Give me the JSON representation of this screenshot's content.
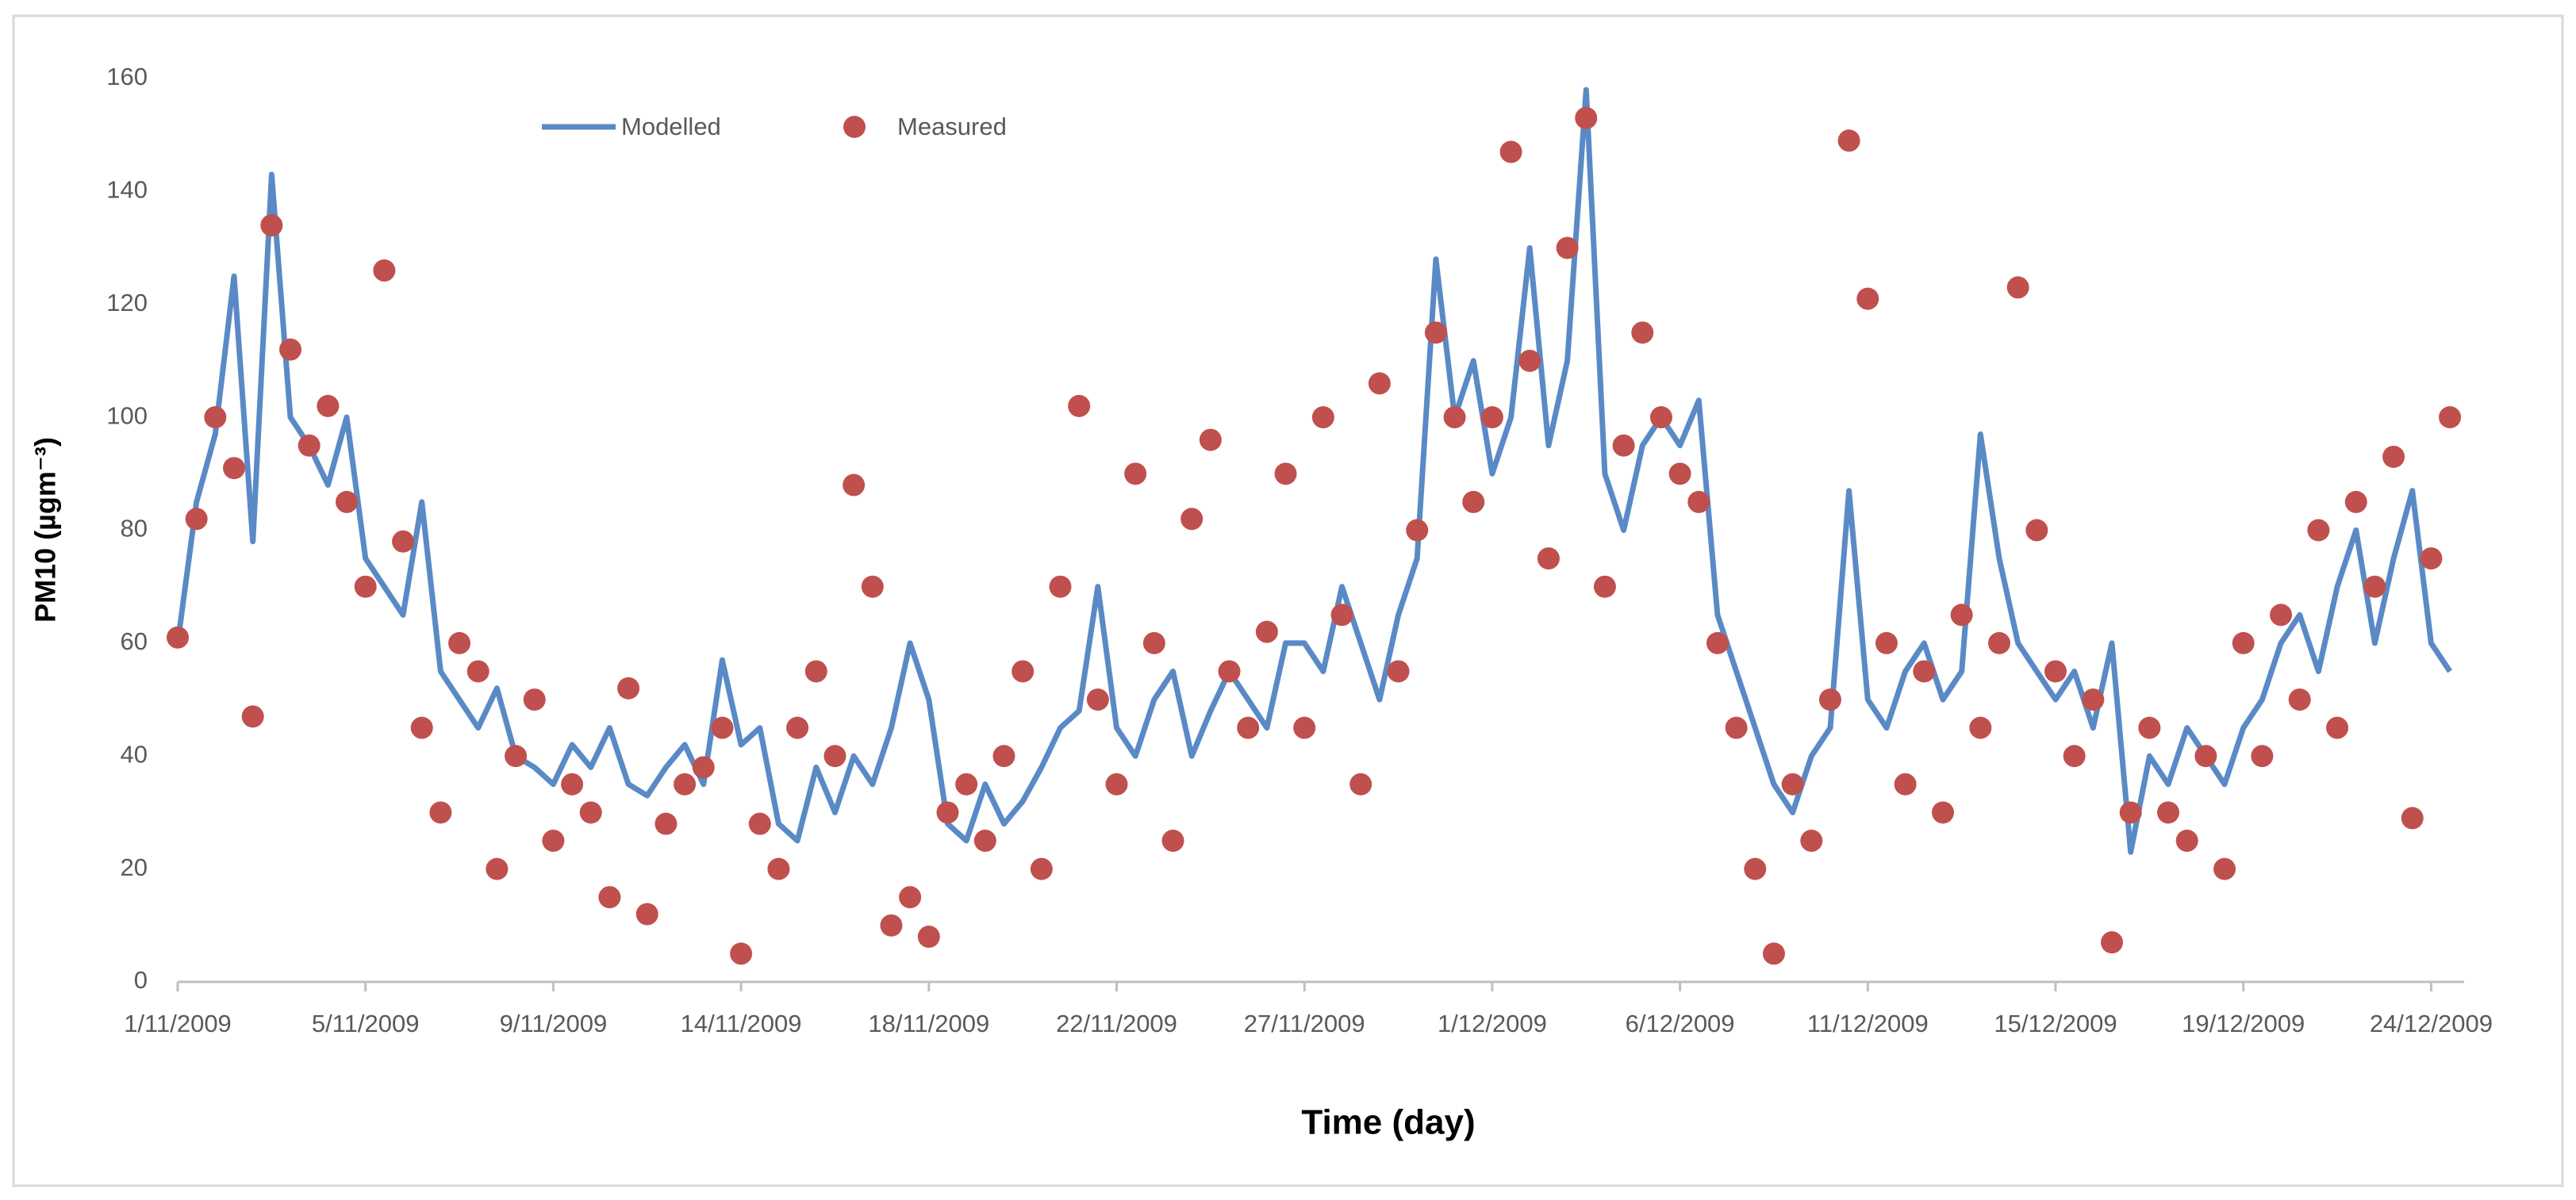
{
  "chart_data": {
    "type": "line",
    "legend": "top",
    "xlabel": "Time  (day)",
    "ylabel": "PM10 (µgm⁻³)",
    "categories": [
      "1/11/2009",
      null,
      null,
      null,
      null,
      null,
      null,
      null,
      null,
      null,
      "5/11/2009",
      null,
      null,
      null,
      null,
      null,
      null,
      null,
      null,
      null,
      "9/11/2009",
      null,
      null,
      null,
      null,
      null,
      null,
      null,
      null,
      null,
      "14/11/2009",
      null,
      null,
      null,
      null,
      null,
      null,
      null,
      null,
      null,
      "18/11/2009",
      null,
      null,
      null,
      null,
      null,
      null,
      null,
      null,
      null,
      "22/11/2009",
      null,
      null,
      null,
      null,
      null,
      null,
      null,
      null,
      null,
      "27/11/2009",
      null,
      null,
      null,
      null,
      null,
      null,
      null,
      null,
      null,
      "1/12/2009",
      null,
      null,
      null,
      null,
      null,
      null,
      null,
      null,
      null,
      "6/12/2009",
      null,
      null,
      null,
      null,
      null,
      null,
      null,
      null,
      null,
      "11/12/2009",
      null,
      null,
      null,
      null,
      null,
      null,
      null,
      null,
      null,
      "15/12/2009",
      null,
      null,
      null,
      null,
      null,
      null,
      null,
      null,
      null,
      "19/12/2009",
      null,
      null,
      null,
      null,
      null,
      null,
      null,
      null,
      null,
      "24/12/2009",
      null
    ],
    "series": [
      {
        "name": "Modelled",
        "color": "#5a8ac6",
        "style": "line",
        "values": [
          60,
          85,
          97,
          125,
          78,
          143,
          100,
          95,
          88,
          100,
          75,
          70,
          65,
          85,
          55,
          50,
          45,
          52,
          40,
          38,
          35,
          42,
          38,
          45,
          35,
          33,
          38,
          42,
          35,
          57,
          42,
          45,
          28,
          25,
          38,
          30,
          40,
          35,
          45,
          60,
          50,
          28,
          25,
          35,
          28,
          32,
          38,
          45,
          48,
          70,
          45,
          40,
          50,
          55,
          40,
          48,
          55,
          50,
          45,
          60,
          60,
          55,
          70,
          60,
          50,
          65,
          75,
          128,
          100,
          110,
          90,
          100,
          130,
          95,
          110,
          158,
          90,
          80,
          95,
          100,
          95,
          103,
          65,
          55,
          45,
          35,
          30,
          40,
          45,
          87,
          50,
          45,
          55,
          60,
          50,
          55,
          97,
          75,
          60,
          55,
          50,
          55,
          45,
          60,
          23,
          40,
          35,
          45,
          40,
          35,
          45,
          50,
          60,
          65,
          55,
          70,
          80,
          60,
          75,
          87,
          60,
          55
        ]
      },
      {
        "name": "Measured",
        "color": "#c0504d",
        "style": "marker",
        "values": [
          61,
          82,
          100,
          91,
          47,
          134,
          112,
          95,
          102,
          85,
          70,
          126,
          78,
          45,
          30,
          60,
          55,
          20,
          40,
          50,
          25,
          35,
          30,
          15,
          52,
          12,
          28,
          35,
          38,
          45,
          5,
          28,
          20,
          45,
          55,
          40,
          88,
          70,
          10,
          15,
          8,
          30,
          35,
          25,
          40,
          55,
          20,
          70,
          102,
          50,
          35,
          90,
          60,
          25,
          82,
          96,
          55,
          45,
          62,
          90,
          45,
          100,
          65,
          35,
          106,
          55,
          80,
          115,
          100,
          85,
          100,
          147,
          110,
          75,
          130,
          153,
          70,
          95,
          115,
          100,
          90,
          85,
          60,
          45,
          20,
          5,
          35,
          25,
          50,
          149,
          121,
          60,
          35,
          55,
          30,
          65,
          45,
          60,
          123,
          80,
          55,
          40,
          50,
          7,
          30,
          45,
          30,
          25,
          40,
          20,
          60,
          40,
          65,
          50,
          80,
          45,
          85,
          70,
          93,
          29,
          75,
          100
        ]
      }
    ],
    "ylim": [
      0,
      160
    ],
    "yticks": [
      0,
      20,
      40,
      60,
      80,
      100,
      120,
      140,
      160
    ],
    "grid": false
  }
}
